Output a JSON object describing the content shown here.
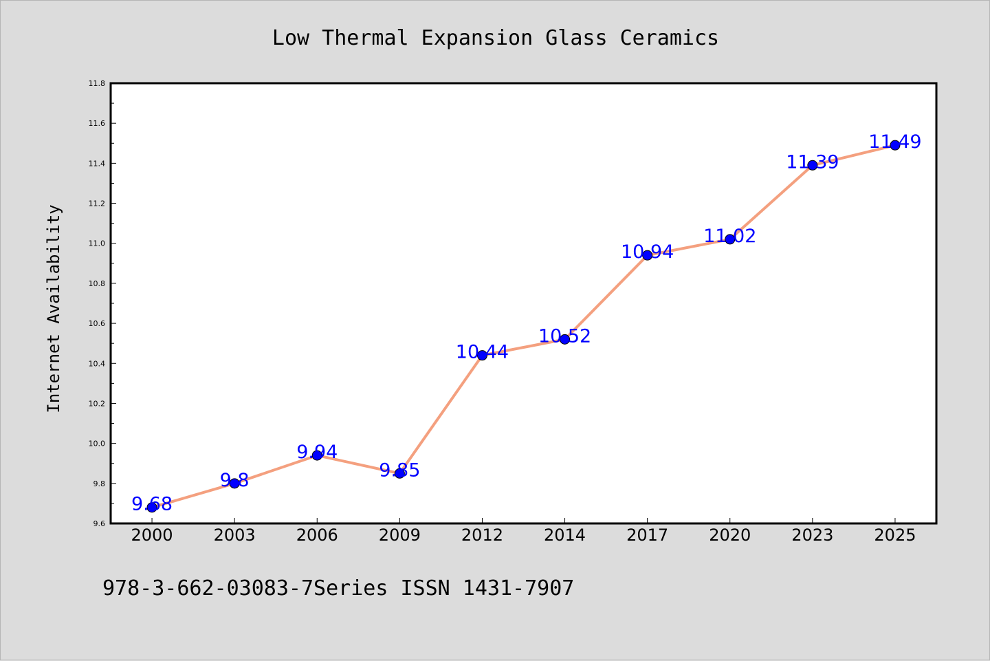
{
  "chart_data": {
    "type": "line",
    "title": "Low Thermal Expansion Glass Ceramics",
    "xlabel": "",
    "ylabel": "Internet Availability",
    "categories": [
      "2000",
      "2003",
      "2006",
      "2009",
      "2012",
      "2014",
      "2017",
      "2020",
      "2023",
      "2025"
    ],
    "series": [
      {
        "values": [
          9.68,
          9.8,
          9.94,
          9.85,
          10.44,
          10.52,
          10.94,
          11.02,
          11.39,
          11.49
        ],
        "data_labels": [
          "9.68",
          "9.8",
          "9.94",
          "9.85",
          "10.44",
          "10.52",
          "10.94",
          "11.02",
          "11.39",
          "11.49"
        ],
        "line_color": "#f4a07f",
        "marker_color": "#0000ff"
      }
    ],
    "ylim": [
      9.6,
      11.8
    ],
    "yticks": [
      "9.6",
      "9.8",
      "10.0",
      "10.2",
      "10.4",
      "10.6",
      "10.8",
      "11.0",
      "11.2",
      "11.4",
      "11.6",
      "11.8"
    ],
    "grid": false,
    "legend": "none"
  },
  "footer": "978-3-662-03083-7Series ISSN 1431-7907",
  "colors": {
    "background": "#dcdcdc",
    "plot_area": "#ffffff",
    "label_text": "#0000ff"
  }
}
